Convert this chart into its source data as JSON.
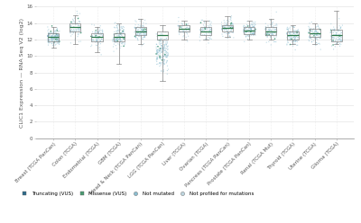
{
  "categories": [
    "Breast (TCGA PanCan)",
    "Colon (TCGA)",
    "Endometrial (TCGA)",
    "GBM (TCGA)",
    "Head & Neck (TCGA PanCan)",
    "LGG (TCGA PanCan)",
    "Liver (TCGA)",
    "Ovarian (TCGA)",
    "Pancreas (TCGA PanCan)",
    "Prostate (TCGA PanCan)",
    "Renal (TCGA Mut)",
    "Thyroid (TCGA)",
    "Uterine (TCGA)",
    "Glioma (TCGA)"
  ],
  "box_medians": [
    12.3,
    13.5,
    12.3,
    12.3,
    13.0,
    12.5,
    13.3,
    13.0,
    13.4,
    13.1,
    13.0,
    12.5,
    12.8,
    12.5
  ],
  "box_q1": [
    11.8,
    13.0,
    11.8,
    11.8,
    12.5,
    12.0,
    13.0,
    12.5,
    13.0,
    12.7,
    12.5,
    12.0,
    12.3,
    11.8
  ],
  "box_q3": [
    12.8,
    14.0,
    12.8,
    12.8,
    13.5,
    13.0,
    13.8,
    13.5,
    13.8,
    13.5,
    13.5,
    13.0,
    13.3,
    13.2
  ],
  "box_whislo": [
    11.0,
    11.5,
    10.5,
    9.0,
    11.5,
    7.0,
    12.0,
    12.0,
    12.3,
    12.0,
    12.0,
    11.5,
    11.5,
    11.5
  ],
  "box_whishi": [
    13.5,
    15.0,
    13.5,
    14.0,
    14.5,
    13.8,
    14.3,
    14.3,
    14.8,
    14.3,
    14.5,
    13.8,
    14.0,
    15.5
  ],
  "n_points": [
    200,
    80,
    100,
    150,
    120,
    200,
    60,
    80,
    100,
    120,
    100,
    120,
    100,
    100
  ],
  "scatter_mean": [
    12.3,
    13.5,
    12.3,
    12.3,
    13.0,
    10.5,
    13.3,
    13.0,
    13.4,
    13.1,
    13.0,
    12.5,
    12.8,
    12.5
  ],
  "scatter_std": [
    0.5,
    0.7,
    0.6,
    0.7,
    0.6,
    1.2,
    0.5,
    0.6,
    0.5,
    0.5,
    0.6,
    0.6,
    0.6,
    0.7
  ],
  "color_not_mutated": "#8bbdd0",
  "color_truncating": "#2d6a8a",
  "color_missense": "#4a9a72",
  "color_not_profiled": "#bdd5df",
  "color_median_line": "#2d7a4a",
  "box_edgecolor": "#888888",
  "background_color": "#ffffff",
  "grid_color": "#dddddd",
  "ylabel": "CLIC1 Expression — RNA Seq V2 (log2)",
  "ylim": [
    0,
    16
  ],
  "yticks": [
    0,
    2,
    4,
    6,
    8,
    10,
    12,
    14,
    16
  ],
  "legend_labels": [
    "Truncating (VUS)",
    "Missense (VUS)",
    "Not mutated",
    "Not profiled for mutations"
  ],
  "legend_colors": [
    "#2d6a8a",
    "#4a9a72",
    "#8bbdd0",
    "#bdd5df"
  ],
  "legend_markers": [
    "s",
    "s",
    "o",
    "o"
  ],
  "axis_fontsize": 4.5,
  "tick_fontsize": 4.0,
  "legend_fontsize": 4.0
}
